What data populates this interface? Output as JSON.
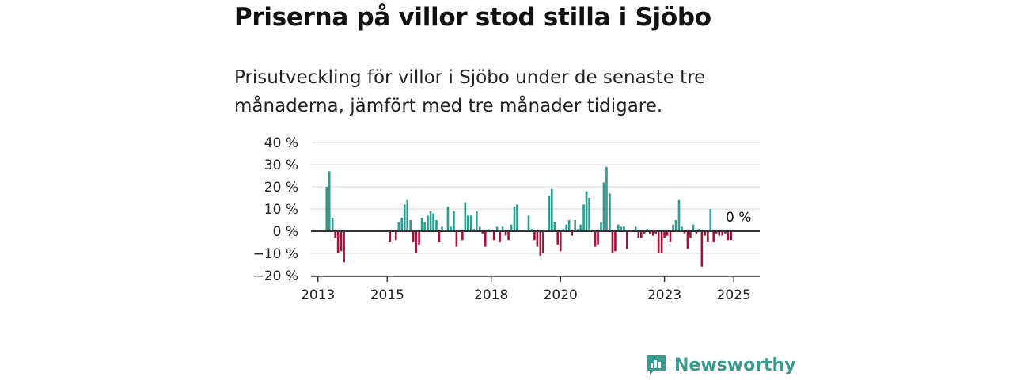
{
  "title": "Priserna på villor stod stilla i Sjöbo",
  "subtitle": "Prisutveckling för villor i Sjöbo under de senaste tre månaderna, jämfört med tre månader tidigare.",
  "brand": {
    "name": "Newsworthy"
  },
  "colors": {
    "positive": "#2a9d8f",
    "negative": "#a6113c",
    "grid": "#d9d9d9",
    "axis": "#333333"
  },
  "chart_data": {
    "type": "bar",
    "title": "Priserna på villor stod stilla i Sjöbo",
    "ylim": [
      -20,
      40
    ],
    "y_ticks": [
      40,
      30,
      20,
      10,
      0,
      -10,
      -20
    ],
    "y_tick_labels": [
      "40 %",
      "30 %",
      "20 %",
      "10 %",
      "0 %",
      "−10 %",
      "−20 %"
    ],
    "x_ticks": [
      2013,
      2015,
      2018,
      2020,
      2023,
      2025
    ],
    "x_tick_labels": [
      "2013",
      "2015",
      "2018",
      "2020",
      "2023",
      "2025"
    ],
    "x_range": [
      2012.8,
      2025.75
    ],
    "grid": true,
    "last_value_label": "0 %",
    "series": [
      {
        "x": [
          2013.25,
          2013.33,
          2013.42,
          2013.5,
          2013.58,
          2013.67,
          2013.75,
          2015.08,
          2015.17,
          2015.25,
          2015.33,
          2015.42,
          2015.5,
          2015.58,
          2015.67,
          2015.75,
          2015.83,
          2015.92,
          2016.0,
          2016.08,
          2016.17,
          2016.25,
          2016.33,
          2016.42,
          2016.5,
          2016.58,
          2016.67,
          2016.75,
          2016.83,
          2016.92,
          2017.0,
          2017.08,
          2017.17,
          2017.25,
          2017.33,
          2017.42,
          2017.5,
          2017.58,
          2017.67,
          2017.75,
          2017.83,
          2017.92,
          2018.0,
          2018.08,
          2018.17,
          2018.25,
          2018.33,
          2018.42,
          2018.5,
          2018.58,
          2018.67,
          2018.75,
          2018.83,
          2018.92,
          2019.0,
          2019.08,
          2019.17,
          2019.25,
          2019.33,
          2019.42,
          2019.5,
          2019.58,
          2019.67,
          2019.75,
          2019.83,
          2019.92,
          2020.0,
          2020.08,
          2020.17,
          2020.25,
          2020.33,
          2020.42,
          2020.5,
          2020.58,
          2020.67,
          2020.75,
          2020.83,
          2020.92,
          2021.0,
          2021.08,
          2021.17,
          2021.25,
          2021.33,
          2021.42,
          2021.5,
          2021.58,
          2021.67,
          2021.75,
          2021.83,
          2021.92,
          2022.0,
          2022.08,
          2022.17,
          2022.25,
          2022.33,
          2022.42,
          2022.5,
          2022.58,
          2022.67,
          2022.75,
          2022.83,
          2022.92,
          2023.0,
          2023.08,
          2023.17,
          2023.25,
          2023.33,
          2023.42,
          2023.5,
          2023.58,
          2023.67,
          2023.75,
          2023.83,
          2023.92,
          2024.0,
          2024.08,
          2024.17,
          2024.25,
          2024.33,
          2024.42,
          2024.5,
          2024.58,
          2024.67,
          2024.75,
          2024.83,
          2024.92,
          2025.0,
          2025.08
        ],
        "values": [
          20,
          27,
          6,
          -3,
          -10,
          -9,
          -14,
          -5,
          0,
          -4,
          4,
          6,
          12,
          14,
          5,
          -5,
          -10,
          -6,
          6,
          4,
          7,
          9,
          8,
          5,
          -5,
          2,
          0,
          11,
          2,
          9,
          -7,
          0,
          -4,
          13,
          7,
          7,
          1,
          9,
          2,
          -1,
          -7,
          1,
          0,
          -4,
          2,
          -5,
          2,
          -2,
          -4,
          3,
          11,
          12,
          0,
          0,
          0,
          7,
          1,
          -4,
          -7,
          -11,
          -10,
          0,
          16,
          19,
          4,
          -6,
          -9,
          1,
          3,
          5,
          -2,
          5,
          1,
          3,
          12,
          18,
          15,
          0,
          -7,
          -6,
          4,
          22,
          29,
          17,
          -10,
          -9,
          3,
          2,
          2,
          -8,
          0,
          0,
          2,
          -3,
          -3,
          -1,
          1,
          -1,
          -2,
          -1,
          -10,
          -10,
          -3,
          -2,
          -5,
          3,
          5,
          14,
          2,
          -1,
          -8,
          -3,
          3,
          -1,
          1,
          -16,
          -2,
          -5,
          10,
          -5,
          -1,
          -2,
          -2,
          -1,
          -4,
          -4,
          0,
          0
        ]
      }
    ]
  }
}
